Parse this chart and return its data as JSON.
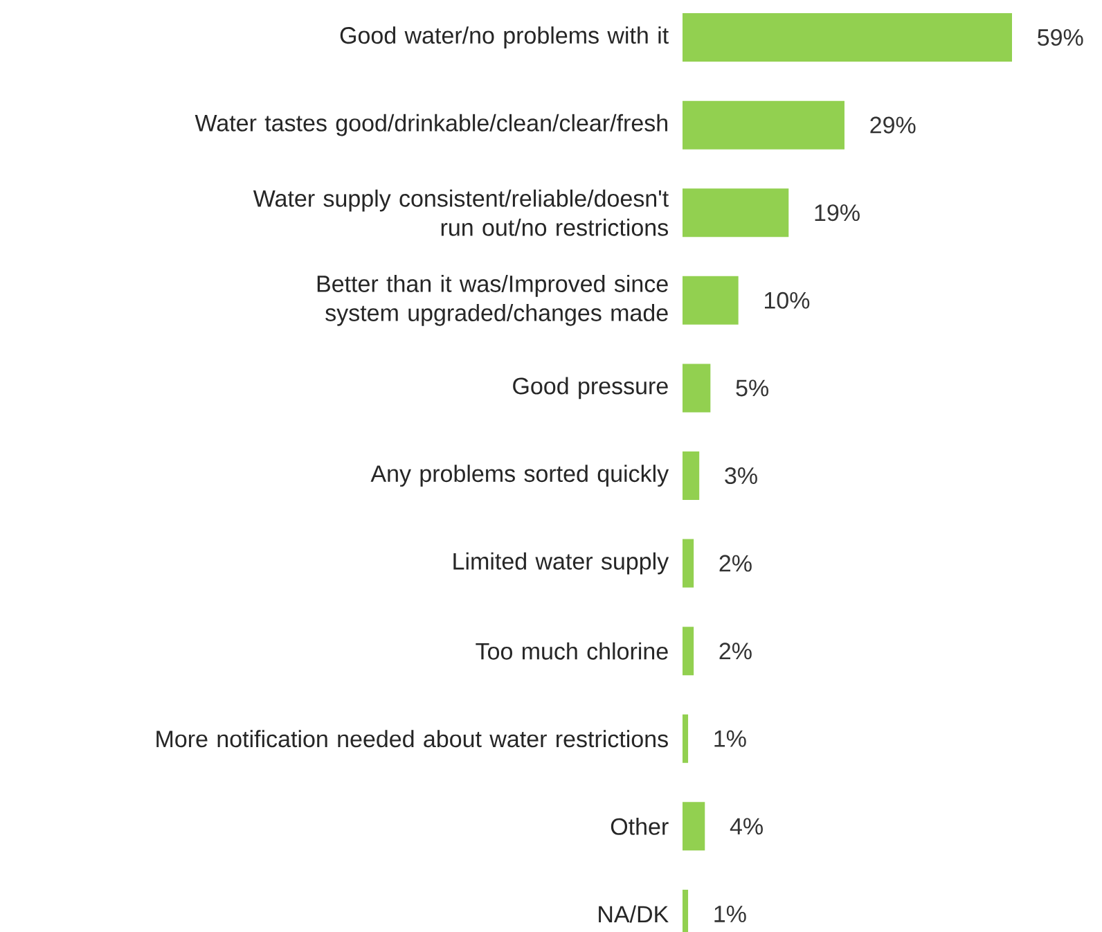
{
  "chart_data": {
    "type": "bar",
    "orientation": "horizontal",
    "color": "#92d050",
    "categories": [
      "Good water/no problems with it",
      "Water tastes good/drinkable/clean/clear/fresh",
      "Water supply consistent/reliable/doesn't run out/no restrictions",
      "Better than it was/Improved since system upgraded/changes made",
      "Good pressure",
      "Any problems sorted quickly",
      "Limited water supply",
      "Too much chlorine",
      "More notification needed about water restrictions",
      "Other",
      "NA/DK"
    ],
    "values": [
      59,
      29,
      19,
      10,
      5,
      3,
      2,
      2,
      1,
      4,
      1
    ],
    "value_labels": [
      "59%",
      "29%",
      "19%",
      "10%",
      "5%",
      "3%",
      "2%",
      "2%",
      "1%",
      "4%",
      "1%"
    ]
  }
}
